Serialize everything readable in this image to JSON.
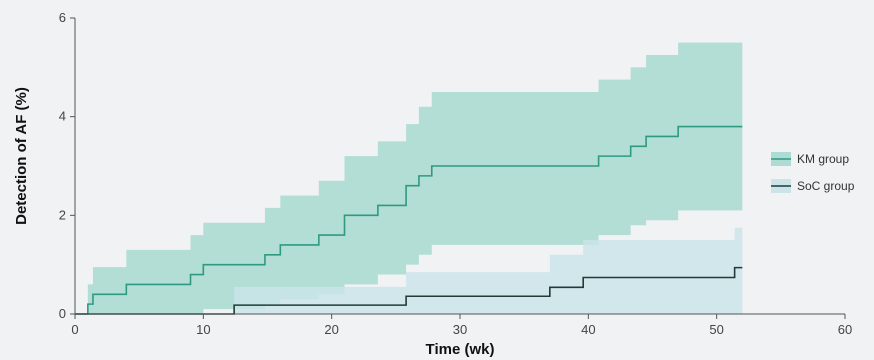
{
  "chart_data": {
    "type": "line",
    "subtype": "step-with-confidence-band",
    "xlabel": "Time (wk)",
    "ylabel": "Detection of AF (%)",
    "xlim": [
      0,
      60
    ],
    "ylim": [
      0,
      6
    ],
    "xticks": [
      "0",
      "10",
      "20",
      "30",
      "40",
      "50",
      "60"
    ],
    "yticks": [
      "0",
      "2",
      "4",
      "6"
    ],
    "grid": false,
    "legend_position": "right",
    "series": [
      {
        "name": "KM group",
        "line_color": "#2e9a82",
        "band_color": "#aedcd4",
        "x": [
          0,
          1.0,
          1.4,
          4.0,
          9.0,
          10.0,
          14.8,
          16.0,
          19.0,
          21.0,
          23.6,
          25.8,
          26.8,
          27.8,
          40.8,
          43.3,
          44.5,
          47.0,
          52.0
        ],
        "y": [
          0,
          0.2,
          0.4,
          0.6,
          0.8,
          1.0,
          1.2,
          1.4,
          1.6,
          2.0,
          2.2,
          2.6,
          2.8,
          3.0,
          3.2,
          3.4,
          3.6,
          3.8,
          3.8
        ],
        "lower": [
          0,
          0,
          0,
          0,
          0,
          0.1,
          0.2,
          0.3,
          0.4,
          0.6,
          0.8,
          1.0,
          1.2,
          1.4,
          1.6,
          1.8,
          1.9,
          2.1,
          2.1
        ],
        "upper": [
          0,
          0.6,
          0.95,
          1.3,
          1.6,
          1.85,
          2.15,
          2.4,
          2.7,
          3.2,
          3.5,
          3.85,
          4.2,
          4.5,
          4.75,
          5.0,
          5.25,
          5.5,
          5.5
        ]
      },
      {
        "name": "SoC group",
        "line_color": "#1f3d36",
        "band_color": "#cbe4ea",
        "x": [
          0,
          12.4,
          25.8,
          37.0,
          39.6,
          51.4,
          52.0
        ],
        "y": [
          0,
          0.18,
          0.36,
          0.54,
          0.74,
          0.94,
          0.94
        ],
        "lower": [
          0,
          0,
          0,
          0,
          0,
          0,
          0
        ],
        "upper": [
          0,
          0.55,
          0.85,
          1.2,
          1.5,
          1.75,
          1.75
        ]
      }
    ]
  }
}
